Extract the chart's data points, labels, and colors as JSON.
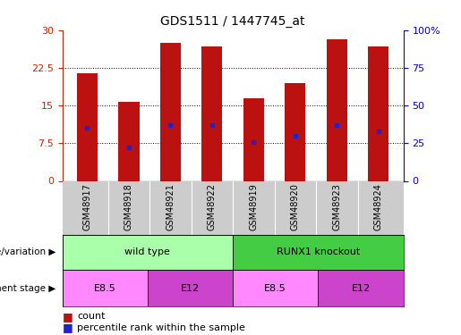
{
  "title": "GDS1511 / 1447745_at",
  "samples": [
    "GSM48917",
    "GSM48918",
    "GSM48921",
    "GSM48922",
    "GSM48919",
    "GSM48920",
    "GSM48923",
    "GSM48924"
  ],
  "counts": [
    21.5,
    15.8,
    27.4,
    26.7,
    16.5,
    19.5,
    28.2,
    26.8
  ],
  "percentile_ranks": [
    35,
    22,
    37,
    37,
    26,
    30,
    37,
    33
  ],
  "bar_color": "#bb1111",
  "dot_color": "#2222cc",
  "ylim_left": [
    0,
    30
  ],
  "ylim_right": [
    0,
    100
  ],
  "yticks_left": [
    0,
    7.5,
    15,
    22.5,
    30
  ],
  "ytick_labels_left": [
    "0",
    "7.5",
    "15",
    "22.5",
    "30"
  ],
  "yticks_right": [
    0,
    25,
    50,
    75,
    100
  ],
  "ytick_labels_right": [
    "0",
    "25",
    "50",
    "75",
    "100%"
  ],
  "genotype_groups": [
    {
      "label": "wild type",
      "start": 0,
      "end": 4,
      "color": "#aaffaa"
    },
    {
      "label": "RUNX1 knockout",
      "start": 4,
      "end": 8,
      "color": "#44cc44"
    }
  ],
  "stage_groups": [
    {
      "label": "E8.5",
      "start": 0,
      "end": 2,
      "color": "#ff88ff"
    },
    {
      "label": "E12",
      "start": 2,
      "end": 4,
      "color": "#cc44cc"
    },
    {
      "label": "E8.5",
      "start": 4,
      "end": 6,
      "color": "#ff88ff"
    },
    {
      "label": "E12",
      "start": 6,
      "end": 8,
      "color": "#cc44cc"
    }
  ],
  "legend_count_color": "#bb1111",
  "legend_dot_color": "#2222cc",
  "label_genotype": "genotype/variation",
  "label_stage": "development stage",
  "tick_color_left": "#cc2200",
  "tick_color_right": "#0000cc",
  "xtick_bg_color": "#cccccc",
  "bar_width": 0.5
}
